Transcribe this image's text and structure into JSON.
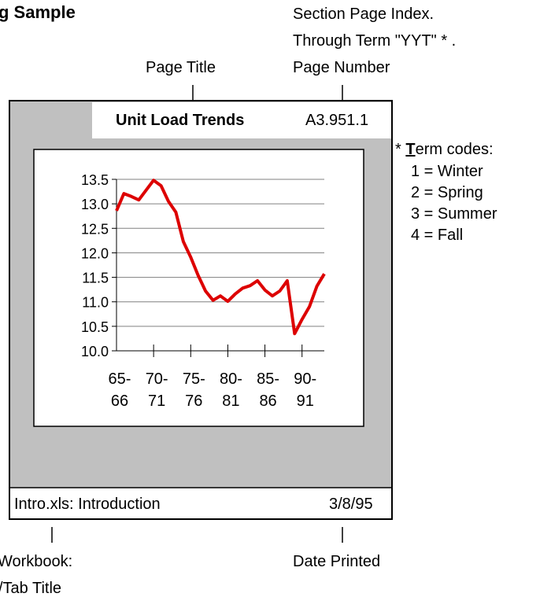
{
  "heading": "g Sample",
  "annotations": {
    "section_index": "Section Page Index.",
    "through_term": "Through Term \"YYT\" * .",
    "page_number": "Page Number",
    "page_title": "Page Title",
    "workbook": "Workbook:",
    "tab_title": "/Tab Title",
    "date_printed": "Date Printed"
  },
  "term_codes": {
    "marker": "*",
    "title_initial": "T",
    "title_rest": "erm codes:",
    "items": [
      "1 = Winter",
      "2 = Spring",
      "3 = Summer",
      "4 = Fall"
    ]
  },
  "page": {
    "title": "Unit Load Trends",
    "index": "A3.951.1",
    "footer_left": "Intro.xls: Introduction",
    "footer_right": "3/8/95"
  },
  "chart_data": {
    "type": "line",
    "color": "#dd0000",
    "grid": true,
    "categories": [
      "65-\n66",
      null,
      null,
      null,
      null,
      "70-\n71",
      null,
      null,
      null,
      null,
      "75-\n76",
      null,
      null,
      null,
      null,
      "80-\n81",
      null,
      null,
      null,
      null,
      "85-\n86",
      null,
      null,
      null,
      null,
      "90-\n91",
      null,
      null,
      null
    ],
    "values": [
      12.86,
      13.21,
      13.15,
      13.08,
      13.28,
      13.48,
      13.37,
      13.05,
      12.83,
      12.23,
      11.91,
      11.54,
      11.22,
      11.03,
      11.12,
      11.01,
      11.16,
      11.28,
      11.33,
      11.43,
      11.24,
      11.12,
      11.22,
      11.43,
      10.35,
      10.64,
      10.9,
      11.32,
      11.57
    ],
    "ylim": [
      10,
      13.5
    ],
    "yticks": [
      {
        "value": 10,
        "label": "10.0"
      },
      {
        "value": 10.5,
        "label": "10.5"
      },
      {
        "value": 11,
        "label": "11.0"
      },
      {
        "value": 11.5,
        "label": "11.5"
      },
      {
        "value": 12,
        "label": "12.0"
      },
      {
        "value": 12.5,
        "label": "12.5"
      },
      {
        "value": 13,
        "label": "13.0"
      },
      {
        "value": 13.5,
        "label": "13.5"
      }
    ]
  }
}
